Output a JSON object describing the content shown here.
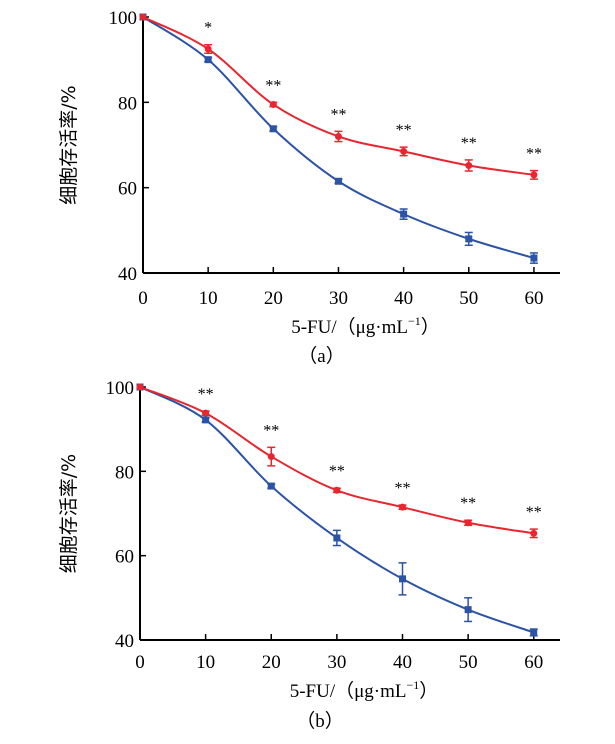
{
  "chart_data": [
    {
      "type": "line",
      "panel_label": "（a）",
      "xlabel": "5-FU/（μg·mL",
      "xlabel_sup": "−1",
      "xlabel_close": "）",
      "ylabel": "细胞存活率/%",
      "x": [
        0,
        10,
        20,
        30,
        40,
        50,
        60
      ],
      "xticks": [
        "0",
        "10",
        "20",
        "30",
        "40",
        "50",
        "60"
      ],
      "yticks": [
        "40",
        "60",
        "80",
        "100"
      ],
      "xlim": [
        0,
        64
      ],
      "ylim": [
        40,
        100
      ],
      "grid": false,
      "series": [
        {
          "color": "#e8262f",
          "marker": "circle",
          "values": [
            100,
            92.5,
            79.5,
            72,
            68.5,
            65.2,
            63
          ],
          "errors": [
            0,
            1,
            0.5,
            1.2,
            1,
            1.3,
            1
          ]
        },
        {
          "color": "#2b53a6",
          "marker": "square",
          "values": [
            100,
            90,
            73.8,
            61.5,
            53.8,
            48,
            43.5
          ],
          "errors": [
            0,
            0.5,
            0.5,
            0.5,
            1.2,
            1.5,
            1.2
          ]
        }
      ],
      "annotations": [
        "*",
        "**",
        "**",
        "**",
        "**",
        "**"
      ]
    },
    {
      "type": "line",
      "panel_label": "（b）",
      "xlabel": "5-FU/（μg·mL",
      "xlabel_sup": "−1",
      "xlabel_close": "）",
      "ylabel": "细胞存活率/%",
      "x": [
        0,
        10,
        20,
        30,
        40,
        50,
        60
      ],
      "xticks": [
        "0",
        "10",
        "20",
        "30",
        "40",
        "50",
        "60"
      ],
      "yticks": [
        "40",
        "60",
        "80",
        "100"
      ],
      "xlim": [
        0,
        64
      ],
      "ylim": [
        40,
        100
      ],
      "grid": false,
      "series": [
        {
          "color": "#e8262f",
          "marker": "circle",
          "values": [
            100,
            93.8,
            83.5,
            75.5,
            71.5,
            67.8,
            65.3
          ],
          "errors": [
            0,
            0.5,
            2.2,
            0.5,
            0.5,
            0.6,
            1
          ]
        },
        {
          "color": "#2b53a6",
          "marker": "square",
          "values": [
            100,
            92.2,
            76.5,
            64.2,
            54.5,
            47.2,
            41.8
          ],
          "errors": [
            0,
            0.5,
            0.5,
            1.8,
            3.8,
            2.8,
            0.8
          ]
        }
      ],
      "annotations": [
        "**",
        "**",
        "**",
        "**",
        "**",
        "**"
      ]
    }
  ]
}
